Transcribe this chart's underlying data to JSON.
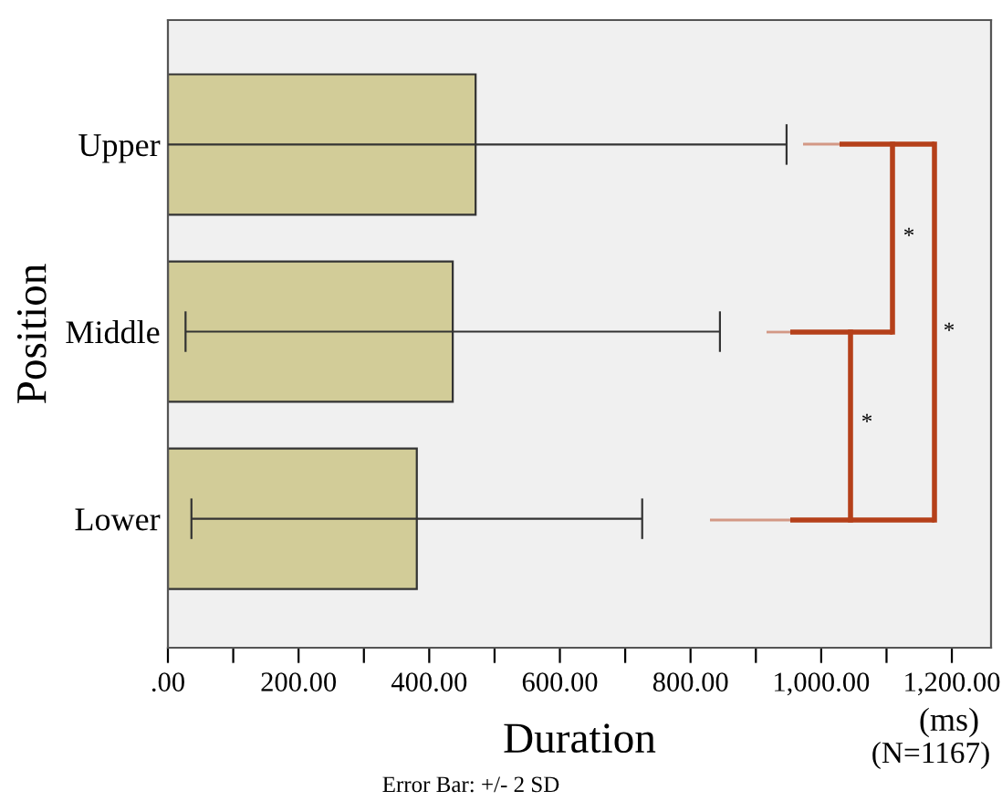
{
  "chart_data": {
    "type": "bar",
    "orientation": "horizontal",
    "xlabel": "Duration",
    "ylabel": "Position",
    "categories": [
      "Upper",
      "Middle",
      "Lower"
    ],
    "values": [
      471,
      436,
      381
    ],
    "errors": [
      476,
      409,
      345
    ],
    "color": "#d2cc98",
    "xlim": [
      0,
      1260
    ],
    "xticks": [
      {
        "value": 0,
        "label": ".00"
      },
      {
        "value": 100,
        "label": null
      },
      {
        "value": 200,
        "label": "200.00"
      },
      {
        "value": 300,
        "label": null
      },
      {
        "value": 400,
        "label": "400.00"
      },
      {
        "value": 500,
        "label": null
      },
      {
        "value": 600,
        "label": "600.00"
      },
      {
        "value": 700,
        "label": null
      },
      {
        "value": 800,
        "label": "800.00"
      },
      {
        "value": 900,
        "label": null
      },
      {
        "value": 1000,
        "label": "1,000.00"
      },
      {
        "value": 1100,
        "label": null
      },
      {
        "value": 1200,
        "label": "1,200.00"
      }
    ],
    "grid": false,
    "annotations": [
      "*",
      "*",
      "*",
      "(ms)",
      "(N=1167)",
      "Error Bar: +/- 2 SD"
    ]
  }
}
